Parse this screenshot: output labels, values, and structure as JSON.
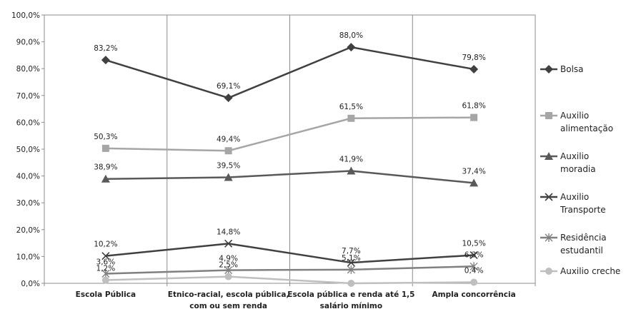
{
  "chart_data": {
    "type": "line",
    "categories": [
      [
        "Escola Pública"
      ],
      [
        "Etnico-racial, escola pública,",
        "com ou sem renda"
      ],
      [
        "Escola pública e renda até 1,5",
        "salário mínimo"
      ],
      [
        "Ampla concorrência"
      ]
    ],
    "ylim": [
      0,
      100
    ],
    "yticks": [
      "0,0%",
      "10,0%",
      "20,0%",
      "30,0%",
      "40,0%",
      "50,0%",
      "60,0%",
      "70,0%",
      "80,0%",
      "90,0%",
      "100,0%"
    ],
    "grid": "vertical",
    "legend_position": "right",
    "series": [
      {
        "name": [
          "Bolsa"
        ],
        "values": [
          83.2,
          69.1,
          88.0,
          79.8
        ],
        "labels": [
          "83,2%",
          "69,1%",
          "88,0%",
          "79,8%"
        ],
        "color": "#404040",
        "marker": "diamond"
      },
      {
        "name": [
          "Auxilio",
          "alimentação"
        ],
        "values": [
          50.3,
          49.4,
          61.5,
          61.8
        ],
        "labels": [
          "50,3%",
          "49,4%",
          "61,5%",
          "61,8%"
        ],
        "color": "#a6a6a6",
        "marker": "square"
      },
      {
        "name": [
          "Auxilio",
          "moradia"
        ],
        "values": [
          38.9,
          39.5,
          41.9,
          37.4
        ],
        "labels": [
          "38,9%",
          "39,5%",
          "41,9%",
          "37,4%"
        ],
        "color": "#595959",
        "marker": "triangle"
      },
      {
        "name": [
          "Auxilio",
          "Transporte"
        ],
        "values": [
          10.2,
          14.8,
          7.7,
          10.5
        ],
        "labels": [
          "10,2%",
          "14,8%",
          "7,7%",
          "10,5%"
        ],
        "color": "#404040",
        "marker": "x"
      },
      {
        "name": [
          "Residência",
          "estudantil"
        ],
        "values": [
          3.6,
          4.9,
          5.1,
          6.3
        ],
        "labels": [
          "3,6%",
          "4,9%",
          "5,1%",
          "6,3%"
        ],
        "color": "#808080",
        "marker": "star"
      },
      {
        "name": [
          "Auxilio creche"
        ],
        "values": [
          1.2,
          2.5,
          0.0,
          0.4
        ],
        "labels": [
          "1,2%",
          "2,5%",
          "",
          "0,4%"
        ],
        "color": "#bfbfbf",
        "marker": "circle"
      }
    ]
  }
}
